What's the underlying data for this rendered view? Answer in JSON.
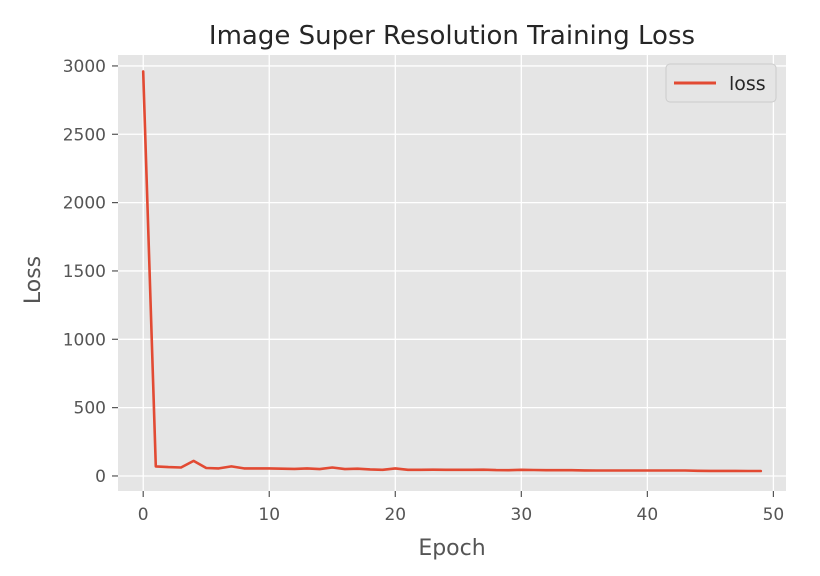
{
  "chart_data": {
    "type": "line",
    "title": "Image Super Resolution Training Loss",
    "xlabel": "Epoch",
    "ylabel": "Loss",
    "xlim": [
      -2,
      51
    ],
    "ylim": [
      -110,
      3080
    ],
    "xticks": [
      0,
      10,
      20,
      30,
      40,
      50
    ],
    "yticks": [
      0,
      500,
      1000,
      1500,
      2000,
      2500,
      3000
    ],
    "grid": true,
    "legend_position": "top-right",
    "colors": {
      "line": "#E24A33",
      "axes_background": "#E5E5E5",
      "grid": "#FFFFFF",
      "tick_mark": "#555555"
    },
    "series": [
      {
        "name": "loss",
        "x": [
          0,
          1,
          2,
          3,
          4,
          5,
          6,
          7,
          8,
          9,
          10,
          11,
          12,
          13,
          14,
          15,
          16,
          17,
          18,
          19,
          20,
          21,
          22,
          23,
          24,
          25,
          26,
          27,
          28,
          29,
          30,
          31,
          32,
          33,
          34,
          35,
          36,
          37,
          38,
          39,
          40,
          41,
          42,
          43,
          44,
          45,
          46,
          47,
          48,
          49
        ],
        "values": [
          2960,
          70,
          65,
          62,
          110,
          58,
          55,
          70,
          55,
          55,
          55,
          53,
          52,
          55,
          50,
          62,
          50,
          53,
          48,
          45,
          55,
          45,
          45,
          46,
          45,
          45,
          45,
          46,
          43,
          42,
          45,
          44,
          42,
          42,
          42,
          41,
          40,
          40,
          40,
          40,
          40,
          40,
          40,
          40,
          38,
          37,
          37,
          37,
          36,
          36
        ]
      }
    ]
  }
}
